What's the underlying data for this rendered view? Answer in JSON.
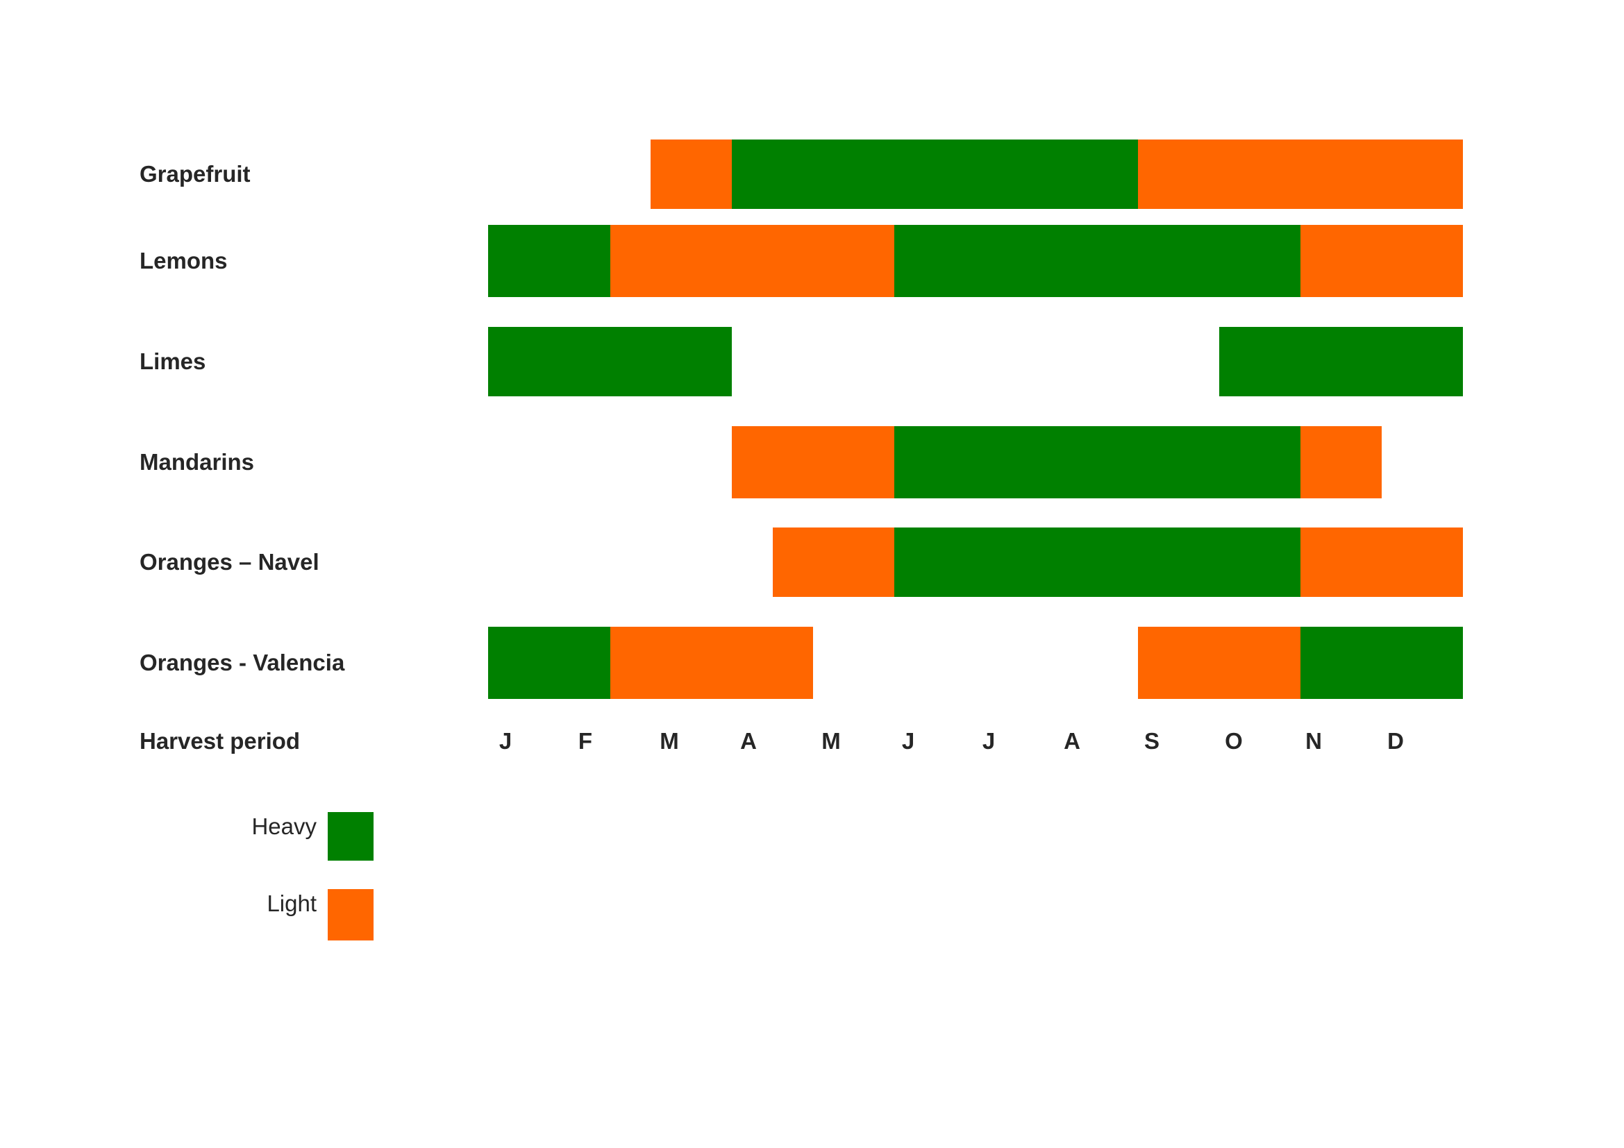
{
  "chart_data": {
    "type": "gantt",
    "title": "",
    "months": [
      "J",
      "F",
      "M",
      "A",
      "M",
      "J",
      "J",
      "A",
      "S",
      "O",
      "N",
      "D"
    ],
    "xlabel": "Harvest period",
    "colors": {
      "Heavy": "#008000",
      "Light": "#ff6600"
    },
    "rows": [
      {
        "label": "Grapefruit",
        "segments": [
          {
            "start": 2.0,
            "end": 3.0,
            "type": "Light"
          },
          {
            "start": 3.0,
            "end": 8.0,
            "type": "Heavy"
          },
          {
            "start": 8.0,
            "end": 12.0,
            "type": "Light"
          }
        ]
      },
      {
        "label": "Lemons",
        "segments": [
          {
            "start": 0.0,
            "end": 1.5,
            "type": "Heavy"
          },
          {
            "start": 1.5,
            "end": 5.0,
            "type": "Light"
          },
          {
            "start": 5.0,
            "end": 10.0,
            "type": "Heavy"
          },
          {
            "start": 10.0,
            "end": 12.0,
            "type": "Light"
          }
        ]
      },
      {
        "label": "Limes",
        "segments": [
          {
            "start": 0.0,
            "end": 3.0,
            "type": "Heavy"
          },
          {
            "start": 9.0,
            "end": 12.0,
            "type": "Heavy"
          }
        ]
      },
      {
        "label": "Mandarins",
        "segments": [
          {
            "start": 3.0,
            "end": 5.0,
            "type": "Light"
          },
          {
            "start": 5.0,
            "end": 10.0,
            "type": "Heavy"
          },
          {
            "start": 10.0,
            "end": 11.0,
            "type": "Light"
          }
        ]
      },
      {
        "label": "Oranges – Navel",
        "segments": [
          {
            "start": 3.5,
            "end": 5.0,
            "type": "Light"
          },
          {
            "start": 5.0,
            "end": 10.0,
            "type": "Heavy"
          },
          {
            "start": 10.0,
            "end": 12.0,
            "type": "Light"
          }
        ]
      },
      {
        "label": "Oranges - Valencia",
        "segments": [
          {
            "start": 0.0,
            "end": 1.5,
            "type": "Heavy"
          },
          {
            "start": 1.5,
            "end": 4.0,
            "type": "Light"
          },
          {
            "start": 8.0,
            "end": 10.0,
            "type": "Light"
          },
          {
            "start": 10.0,
            "end": 12.0,
            "type": "Heavy"
          }
        ]
      }
    ],
    "legend": [
      {
        "label": "Heavy",
        "type": "Heavy"
      },
      {
        "label": "Light",
        "type": "Light"
      }
    ]
  }
}
